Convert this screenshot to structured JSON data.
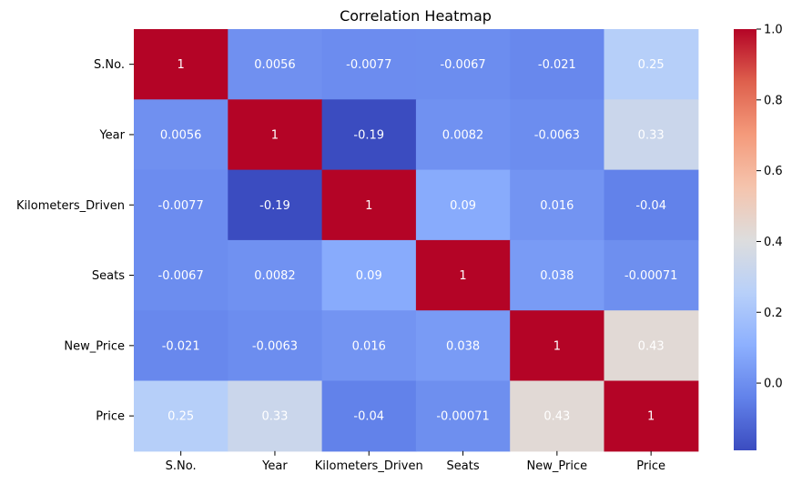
{
  "chart_data": {
    "type": "heatmap",
    "title": "Correlation Heatmap",
    "xlabel": "",
    "ylabel": "",
    "categories_x": [
      "S.No.",
      "Year",
      "Kilometers_Driven",
      "Seats",
      "New_Price",
      "Price"
    ],
    "categories_y": [
      "S.No.",
      "Year",
      "Kilometers_Driven",
      "Seats",
      "New_Price",
      "Price"
    ],
    "values": [
      [
        1,
        0.0056,
        -0.0077,
        -0.0067,
        -0.021,
        0.25
      ],
      [
        0.0056,
        1,
        -0.19,
        0.0082,
        -0.0063,
        0.33
      ],
      [
        -0.0077,
        -0.19,
        1,
        0.09,
        0.016,
        -0.04
      ],
      [
        -0.0067,
        0.0082,
        0.09,
        1,
        0.038,
        -0.00071
      ],
      [
        -0.021,
        -0.0063,
        0.016,
        0.038,
        1,
        0.43
      ],
      [
        0.25,
        0.33,
        -0.04,
        -0.00071,
        0.43,
        1
      ]
    ],
    "labels": [
      [
        "1",
        "0.0056",
        "-0.0077",
        "-0.0067",
        "-0.021",
        "0.25"
      ],
      [
        "0.0056",
        "1",
        "-0.19",
        "0.0082",
        "-0.0063",
        "0.33"
      ],
      [
        "-0.0077",
        "-0.19",
        "1",
        "0.09",
        "0.016",
        "-0.04"
      ],
      [
        "-0.0067",
        "0.0082",
        "0.09",
        "1",
        "0.038",
        "-0.00071"
      ],
      [
        "-0.021",
        "-0.0063",
        "0.016",
        "0.038",
        "1",
        "0.43"
      ],
      [
        "0.25",
        "0.33",
        "-0.04",
        "-0.00071",
        "0.43",
        "1"
      ]
    ],
    "colormap": "coolwarm",
    "color_range": [
      -0.19,
      1.0
    ],
    "colorbar_ticks": [
      0.0,
      0.2,
      0.4,
      0.6,
      0.8,
      1.0
    ],
    "colorbar_tick_labels": [
      "0.0",
      "0.2",
      "0.4",
      "0.6",
      "0.8",
      "1.0"
    ],
    "annotations": true,
    "grid": false,
    "legend": "colorbar-right"
  }
}
